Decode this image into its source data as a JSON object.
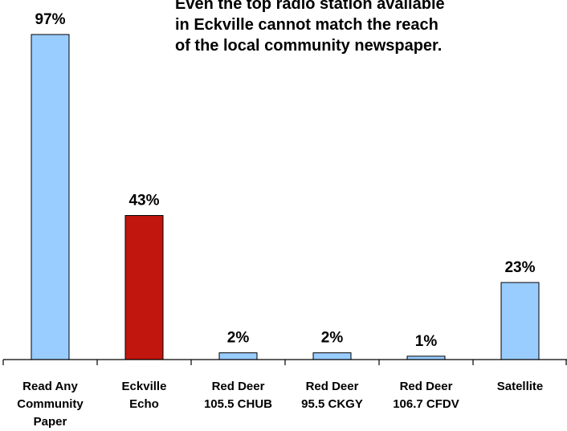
{
  "chart_data": {
    "type": "bar",
    "title": "",
    "xlabel": "",
    "ylabel": "",
    "ylim": [
      0,
      100
    ],
    "grid": false,
    "annotation": "Even the top radio station available\nin Eckville cannot match the reach\nof the local community newspaper.",
    "categories": [
      [
        "Read Any",
        "Community",
        "Paper"
      ],
      [
        "Eckville",
        "Echo"
      ],
      [
        "Red Deer",
        "105.5 CHUB"
      ],
      [
        "Red Deer",
        "95.5 CKGY"
      ],
      [
        "Red Deer",
        "106.7 CFDV"
      ],
      [
        "Satellite"
      ]
    ],
    "values": [
      97,
      43,
      2,
      2,
      1,
      23
    ],
    "value_labels": [
      "97%",
      "43%",
      "2%",
      "2%",
      "1%",
      "23%"
    ],
    "bar_colors": [
      "#99ccff",
      "#c0160e",
      "#99ccff",
      "#99ccff",
      "#99ccff",
      "#99ccff"
    ]
  }
}
